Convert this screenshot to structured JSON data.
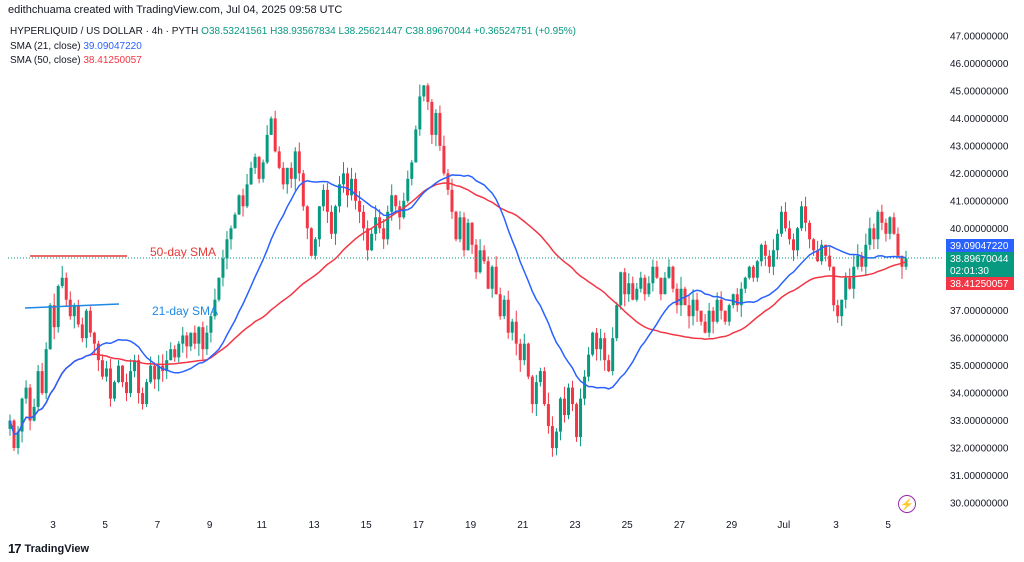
{
  "caption": "edithchuama created with TradingView.com, Jul 04, 2025 09:58 UTC",
  "legend": {
    "symbol": "HYPERLIQUID / US DOLLAR · 4h · PYTH",
    "o": "O38.53241561",
    "h": "H38.93567834",
    "l": "L38.25621447",
    "c": "C38.89670044",
    "chg": "+0.36524751 (+0.95%)",
    "sma21_label": "SMA (21, close)",
    "sma21_value": "39.09047220",
    "sma50_label": "SMA (50, close)",
    "sma50_value": "38.41250057"
  },
  "annotations": {
    "sma50": "50-day SMA",
    "sma21": "21-day SMA"
  },
  "badges": {
    "sma21": "39.09047220",
    "price": "38.89670044",
    "countdown": "02:01:30",
    "sma50": "38.41250057"
  },
  "footer": {
    "logo_mark": "17",
    "logo_text": "TradingView"
  },
  "colors": {
    "up": "#089981",
    "down": "#f23645",
    "sma21": "#2962ff",
    "sma50": "#f23645",
    "annotation_line": "#e53935",
    "annotation_line_blue": "#1e88e5"
  },
  "chart_data": {
    "type": "candlestick",
    "timeframe": "4h",
    "y_ticks": [
      "47.00000000",
      "46.00000000",
      "45.00000000",
      "44.00000000",
      "43.00000000",
      "42.00000000",
      "41.00000000",
      "40.00000000",
      "39.00000000",
      "38.00000000",
      "37.00000000",
      "36.00000000",
      "35.00000000",
      "34.00000000",
      "33.00000000",
      "32.00000000",
      "31.00000000",
      "30.00000000"
    ],
    "ylim": [
      29.4,
      47.6
    ],
    "x_ticks": [
      "3",
      "5",
      "7",
      "9",
      "11",
      "13",
      "15",
      "17",
      "19",
      "21",
      "23",
      "25",
      "27",
      "29",
      "Jul",
      "3",
      "5"
    ],
    "ohlc_close": [
      33.0,
      32.0,
      32.6,
      33.8,
      34.2,
      33.0,
      33.5,
      34.8,
      34.0,
      35.6,
      37.2,
      36.4,
      37.9,
      38.2,
      37.4,
      36.8,
      37.2,
      36.5,
      36.0,
      37.0,
      36.2,
      35.8,
      35.2,
      34.6,
      34.9,
      33.8,
      34.4,
      35.0,
      34.4,
      34.0,
      34.8,
      35.2,
      34.0,
      33.6,
      34.4,
      35.0,
      34.5,
      35.0,
      34.8,
      35.2,
      35.6,
      35.3,
      35.8,
      36.1,
      35.7,
      36.2,
      35.8,
      36.4,
      35.6,
      36.2,
      36.8,
      37.4,
      38.2,
      38.9,
      39.6,
      40.0,
      40.5,
      41.2,
      40.8,
      41.6,
      42.2,
      42.6,
      41.8,
      42.4,
      43.4,
      44.0,
      42.8,
      42.2,
      41.6,
      42.2,
      41.8,
      42.8,
      42.0,
      40.8,
      40.0,
      39.0,
      39.6,
      40.8,
      41.4,
      40.6,
      39.8,
      40.8,
      41.6,
      42.0,
      41.2,
      41.8,
      41.0,
      40.6,
      40.0,
      39.2,
      39.8,
      40.4,
      40.0,
      39.6,
      40.6,
      41.2,
      40.8,
      40.4,
      41.0,
      41.8,
      42.4,
      43.6,
      44.8,
      45.2,
      44.6,
      43.4,
      44.2,
      43.0,
      42.0,
      41.4,
      40.6,
      39.6,
      40.4,
      39.2,
      40.2,
      39.4,
      38.4,
      39.2,
      38.8,
      37.8,
      38.6,
      37.6,
      36.8,
      37.4,
      36.2,
      36.6,
      35.8,
      35.2,
      35.8,
      34.6,
      33.6,
      34.4,
      34.8,
      33.6,
      32.8,
      32.0,
      32.6,
      33.8,
      33.2,
      34.2,
      33.6,
      32.4,
      33.8,
      34.6,
      35.4,
      36.2,
      35.6,
      36.0,
      35.2,
      34.8,
      36.0,
      37.2,
      38.4,
      37.6,
      38.0,
      37.4,
      37.8,
      38.2,
      37.6,
      38.0,
      38.6,
      38.2,
      37.6,
      38.2,
      38.6,
      37.8,
      37.2,
      37.8,
      37.2,
      36.8,
      37.4,
      37.0,
      36.6,
      36.2,
      37.0,
      36.6,
      37.4,
      37.0,
      36.6,
      37.2,
      37.6,
      37.2,
      37.8,
      38.2,
      38.6,
      38.2,
      38.8,
      39.4,
      39.0,
      38.6,
      39.2,
      39.8,
      40.6,
      40.0,
      39.6,
      39.2,
      40.0,
      40.8,
      40.2,
      39.6,
      39.2,
      38.8,
      39.4,
      39.0,
      38.6,
      37.2,
      36.8,
      37.4,
      38.2,
      37.8,
      38.6,
      39.0,
      38.6,
      39.4,
      40.0,
      39.6,
      40.6,
      40.2,
      39.8,
      40.4,
      39.8,
      39.0,
      38.6,
      38.9
    ],
    "series": [
      {
        "name": "SMA (21, close)"
      },
      {
        "name": "SMA (50, close)"
      }
    ]
  }
}
